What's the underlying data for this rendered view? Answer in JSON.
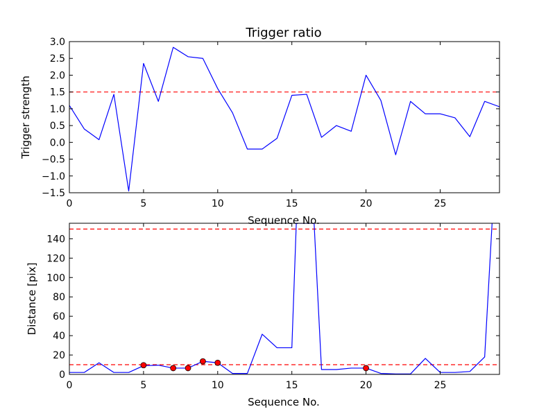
{
  "chart_data": [
    {
      "type": "line",
      "title": "Trigger ratio",
      "xlabel": "Sequence No.",
      "ylabel": "Trigger strength",
      "xlim": [
        0,
        29
      ],
      "ylim": [
        -1.5,
        3.0
      ],
      "xticks": [
        0,
        5,
        10,
        15,
        20,
        25
      ],
      "xtick_labels": [
        "0",
        "5",
        "10",
        "15",
        "20",
        "25"
      ],
      "yticks": [
        -1.5,
        -1.0,
        -0.5,
        0.0,
        0.5,
        1.0,
        1.5,
        2.0,
        2.5,
        3.0
      ],
      "ytick_labels": [
        "−1.5",
        "−1.0",
        "−0.5",
        "0.0",
        "0.5",
        "1.0",
        "1.5",
        "2.0",
        "2.5",
        "3.0"
      ],
      "grid": false,
      "series": [
        {
          "color": "#0000ff",
          "x": [
            0,
            1,
            2,
            3,
            4,
            5,
            6,
            7,
            8,
            9,
            10,
            11,
            12,
            13,
            14,
            15,
            16,
            17,
            18,
            19,
            20,
            21,
            22,
            23,
            24,
            25,
            26,
            27,
            28,
            29
          ],
          "values": [
            1.1,
            0.4,
            0.08,
            1.43,
            -1.45,
            2.35,
            1.22,
            2.83,
            2.55,
            2.5,
            1.6,
            0.88,
            -0.2,
            -0.2,
            0.12,
            1.4,
            1.43,
            0.15,
            0.5,
            0.33,
            2.0,
            1.25,
            -0.37,
            1.22,
            0.85,
            0.85,
            0.73,
            0.17,
            1.22,
            1.06
          ]
        }
      ],
      "hlines": [
        {
          "y": 1.5,
          "color": "#ff0000",
          "style": "dashed"
        }
      ]
    },
    {
      "type": "line",
      "title": "",
      "xlabel": "Sequence No.",
      "ylabel": "Distance [pix]",
      "xlim": [
        0,
        29
      ],
      "ylim": [
        0,
        156
      ],
      "xticks": [
        0,
        5,
        10,
        15,
        20,
        25
      ],
      "xtick_labels": [
        "0",
        "5",
        "10",
        "15",
        "20",
        "25"
      ],
      "yticks": [
        0,
        20,
        40,
        60,
        80,
        100,
        120,
        140
      ],
      "ytick_labels": [
        "0",
        "20",
        "40",
        "60",
        "80",
        "100",
        "120",
        "140"
      ],
      "grid": false,
      "series": [
        {
          "color": "#0000ff",
          "x": [
            0,
            1,
            2,
            3,
            4,
            5,
            6,
            7,
            8,
            9,
            10,
            11,
            12,
            13,
            14,
            15,
            15.3,
            16.5,
            17,
            18,
            19,
            20,
            21,
            22,
            23,
            24,
            25,
            26,
            27,
            28,
            28.5
          ],
          "values": [
            2,
            2,
            12,
            2,
            2,
            9,
            9.5,
            6.5,
            6.5,
            13.5,
            12,
            1,
            1,
            41.5,
            27.5,
            27.5,
            156,
            156,
            5,
            5,
            6.5,
            6.5,
            1,
            0.5,
            0.5,
            16.5,
            2,
            2,
            3,
            18,
            156
          ]
        }
      ],
      "markers": {
        "color": "#ff0000",
        "x": [
          5,
          7,
          8,
          9,
          10,
          20
        ],
        "values": [
          9.5,
          6.5,
          6.5,
          13.5,
          12,
          6.5
        ]
      },
      "hlines": [
        {
          "y": 150,
          "color": "#ff0000",
          "style": "dashed"
        },
        {
          "y": 10,
          "color": "#ff0000",
          "style": "dashed"
        }
      ]
    }
  ]
}
